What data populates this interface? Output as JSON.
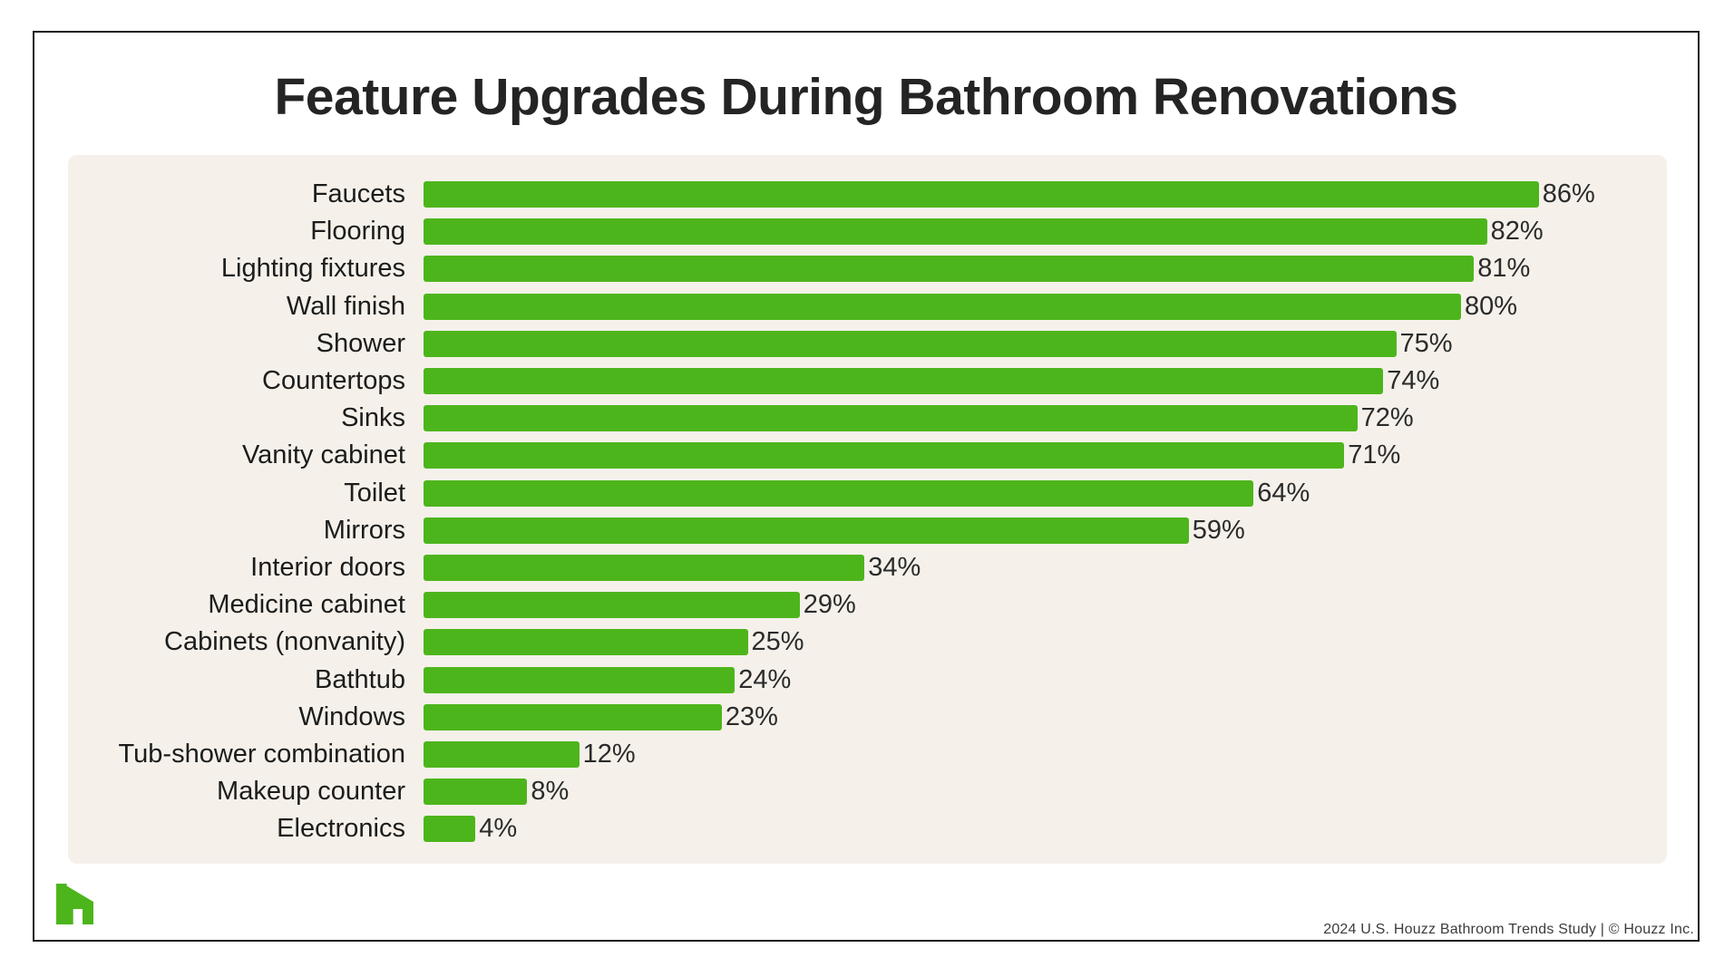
{
  "page": {
    "title": "Feature Upgrades During Bathroom Renovations",
    "footer": "2024 U.S. Houzz Bathroom Trends Study | © Houzz Inc."
  },
  "colors": {
    "bar_green": "#4db51c",
    "panel_beige": "#f5f1ea",
    "title_text": "#242424",
    "label_text": "#1c1c1c",
    "card_border": "#1a1a1a",
    "logo_green": "#4db51c"
  },
  "chart_data": {
    "type": "bar",
    "orientation": "horizontal",
    "title": "Feature Upgrades During Bathroom Renovations",
    "categories": [
      "Faucets",
      "Flooring",
      "Lighting fixtures",
      "Wall finish",
      "Shower",
      "Countertops",
      "Sinks",
      "Vanity cabinet",
      "Toilet",
      "Mirrors",
      "Interior doors",
      "Medicine cabinet",
      "Cabinets (nonvanity)",
      "Bathtub",
      "Windows",
      "Tub-shower combination",
      "Makeup counter",
      "Electronics"
    ],
    "values": [
      86,
      82,
      81,
      80,
      75,
      74,
      72,
      71,
      64,
      59,
      34,
      29,
      25,
      24,
      23,
      12,
      8,
      4
    ],
    "value_suffix": "%",
    "xlim": [
      0,
      100
    ],
    "grid": false,
    "legend": false,
    "bar_color": "#4db51c",
    "value_labels_shown": true
  }
}
